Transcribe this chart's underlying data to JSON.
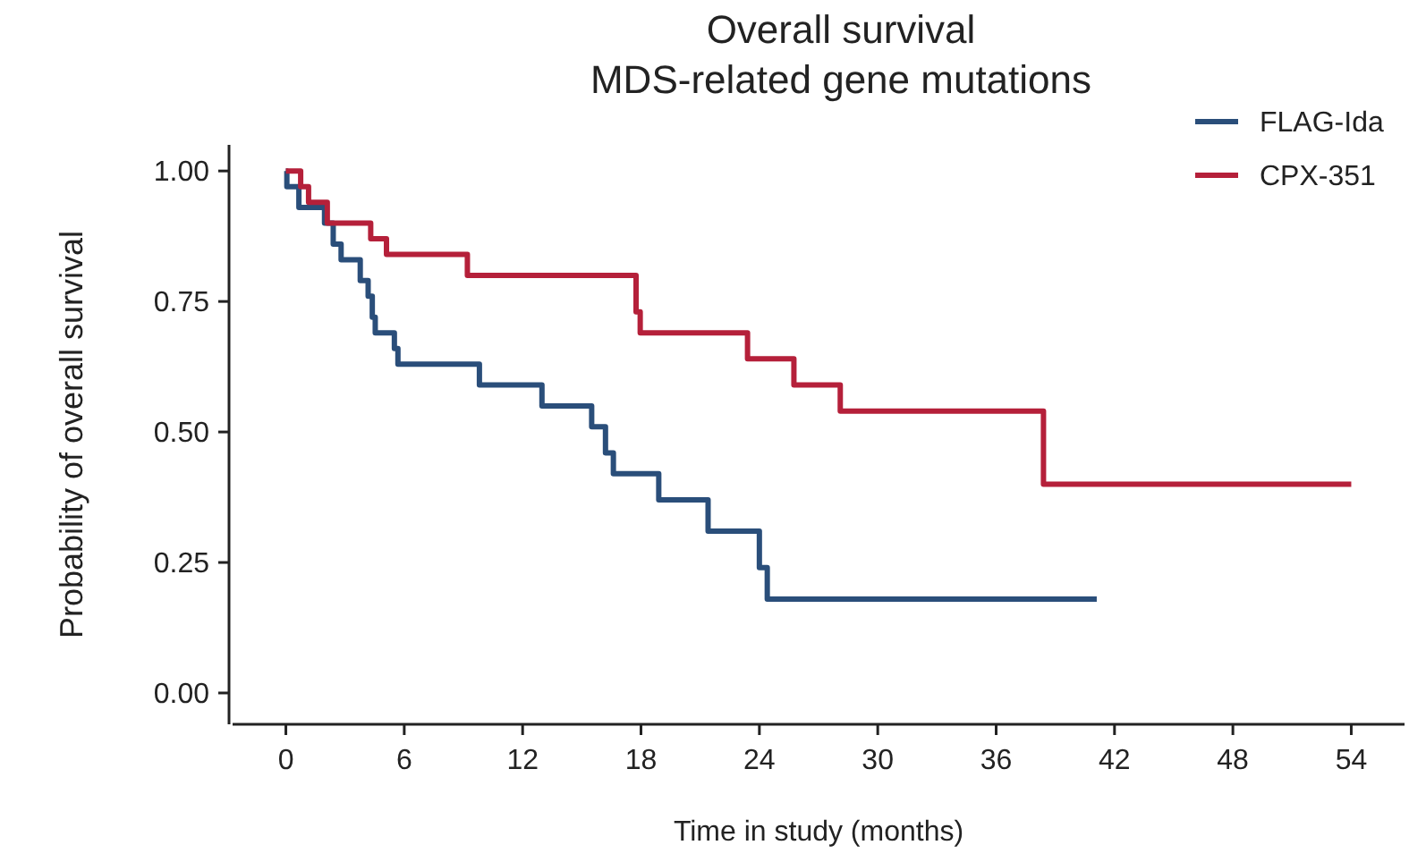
{
  "chart_data": {
    "type": "step",
    "title": "Overall survival",
    "subtitle": "MDS-related gene mutations",
    "xlabel": "Time in study (months)",
    "ylabel": "Probability of overall survival",
    "xlim": [
      -2.7,
      56.7
    ],
    "xticks": [
      0,
      6,
      12,
      18,
      24,
      30,
      36,
      42,
      48,
      54
    ],
    "ylim": [
      -0.06,
      1.05
    ],
    "yticks": [
      {
        "value": 0,
        "label": "0.00"
      },
      {
        "value": 0.25,
        "label": "0.25"
      },
      {
        "value": 0.5,
        "label": "0.50"
      },
      {
        "value": 0.75,
        "label": "0.75"
      },
      {
        "value": 1,
        "label": "1.00"
      }
    ],
    "legend": "top right",
    "grid": false,
    "series": [
      {
        "name": "FLAG-Ida",
        "color": "#2a4e7a",
        "x": [
          0,
          0.05,
          0.66,
          1.96,
          2.4,
          2.8,
          3.77,
          4.17,
          4.38,
          4.53,
          5.5,
          5.68,
          9.81,
          12.98,
          15.5,
          16.2,
          16.6,
          18.9,
          21.4,
          24.0,
          24.4,
          41.1
        ],
        "values": [
          1.0,
          0.97,
          0.93,
          0.9,
          0.86,
          0.83,
          0.79,
          0.76,
          0.72,
          0.69,
          0.66,
          0.63,
          0.59,
          0.55,
          0.51,
          0.46,
          0.42,
          0.37,
          0.31,
          0.24,
          0.18,
          0.18
        ]
      },
      {
        "name": "CPX-351",
        "color": "#b5203a",
        "x": [
          0,
          0.75,
          1.15,
          2.1,
          4.3,
          5.1,
          9.2,
          17.75,
          17.96,
          23.4,
          25.75,
          28.1,
          38.4,
          54.0
        ],
        "values": [
          1.0,
          0.97,
          0.94,
          0.9,
          0.87,
          0.84,
          0.8,
          0.73,
          0.69,
          0.64,
          0.59,
          0.54,
          0.4,
          0.4
        ]
      }
    ]
  }
}
